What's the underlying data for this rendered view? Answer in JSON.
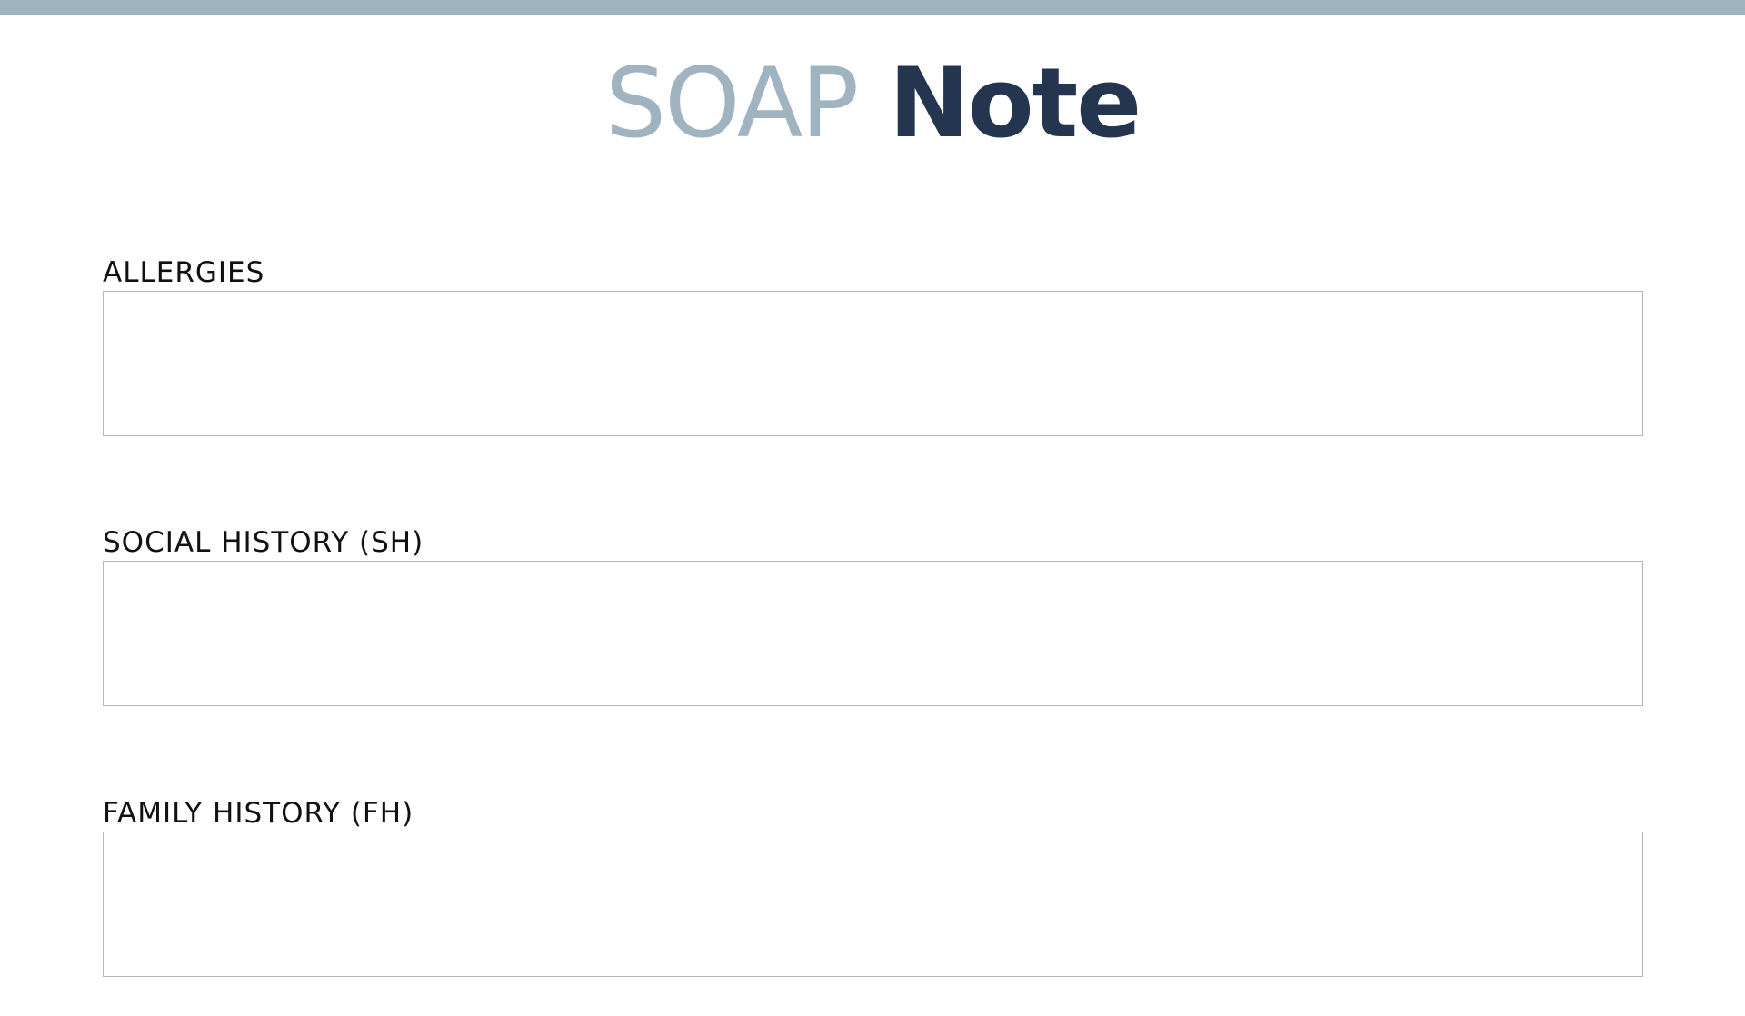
{
  "header": {
    "title_part1": "SOAP",
    "title_part2": "Note",
    "accent_color": "#9fb3c1",
    "title_color": "#24364f"
  },
  "sections": [
    {
      "label": "ALLERGIES",
      "value": ""
    },
    {
      "label": "SOCIAL HISTORY (SH)",
      "value": ""
    },
    {
      "label": "FAMILY HISTORY (FH)",
      "value": ""
    }
  ]
}
